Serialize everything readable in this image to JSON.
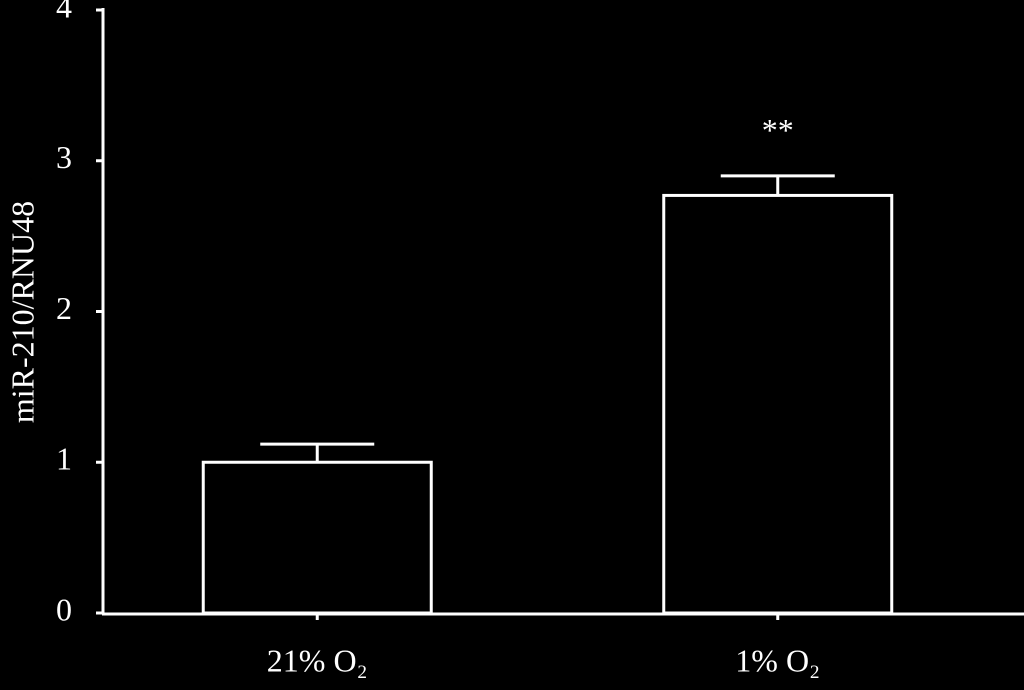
{
  "chart_data": {
    "type": "bar",
    "y_label": "miR-210/RNU48",
    "categories": [
      "21% O₂",
      "1% O₂"
    ],
    "values": [
      1.0,
      2.77
    ],
    "errors": [
      0.12,
      0.13
    ],
    "bar_annotations": [
      null,
      "**"
    ],
    "color": "#000000",
    "edge_color": "#ffffff",
    "ylim": [
      0,
      4
    ],
    "yticks": [
      0,
      1,
      2,
      3,
      4
    ]
  }
}
